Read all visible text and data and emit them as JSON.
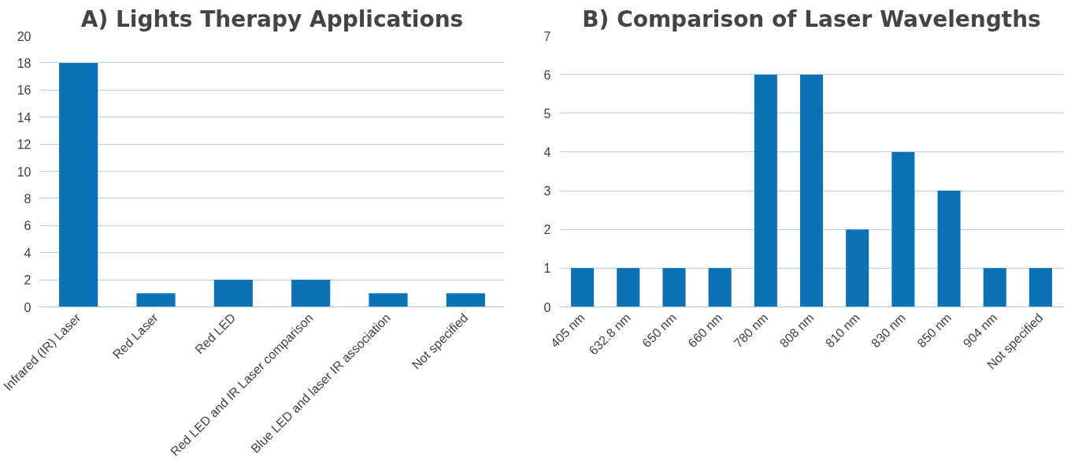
{
  "chart_data": [
    {
      "type": "bar",
      "title": "A) Lights Therapy Applications",
      "categories": [
        "Infrared (IR) Laser",
        "Red Laser",
        "Red LED",
        "Red LED and IR Laser comparison",
        "Blue LED and laser IR association",
        "Not specified"
      ],
      "values": [
        18,
        1,
        2,
        2,
        1,
        1
      ],
      "color": "#0a72b5",
      "ylim": [
        0,
        20
      ],
      "yticks": [
        0,
        2,
        4,
        6,
        8,
        10,
        12,
        14,
        16,
        18,
        20
      ],
      "grid": "y"
    },
    {
      "type": "bar",
      "title": "B) Comparison of Laser Wavelengths",
      "categories": [
        "405 nm",
        "632.8 nm",
        "650 nm",
        "660 nm",
        "780 nm",
        "808 nm",
        "810 nm",
        "830 nm",
        "850 nm",
        "904 nm",
        "Not specified"
      ],
      "values": [
        1,
        1,
        1,
        1,
        6,
        6,
        2,
        4,
        3,
        1,
        1
      ],
      "color": "#0a72b5",
      "ylim": [
        0,
        7
      ],
      "yticks": [
        0,
        1,
        2,
        3,
        4,
        5,
        6,
        7
      ],
      "grid": "y"
    }
  ]
}
